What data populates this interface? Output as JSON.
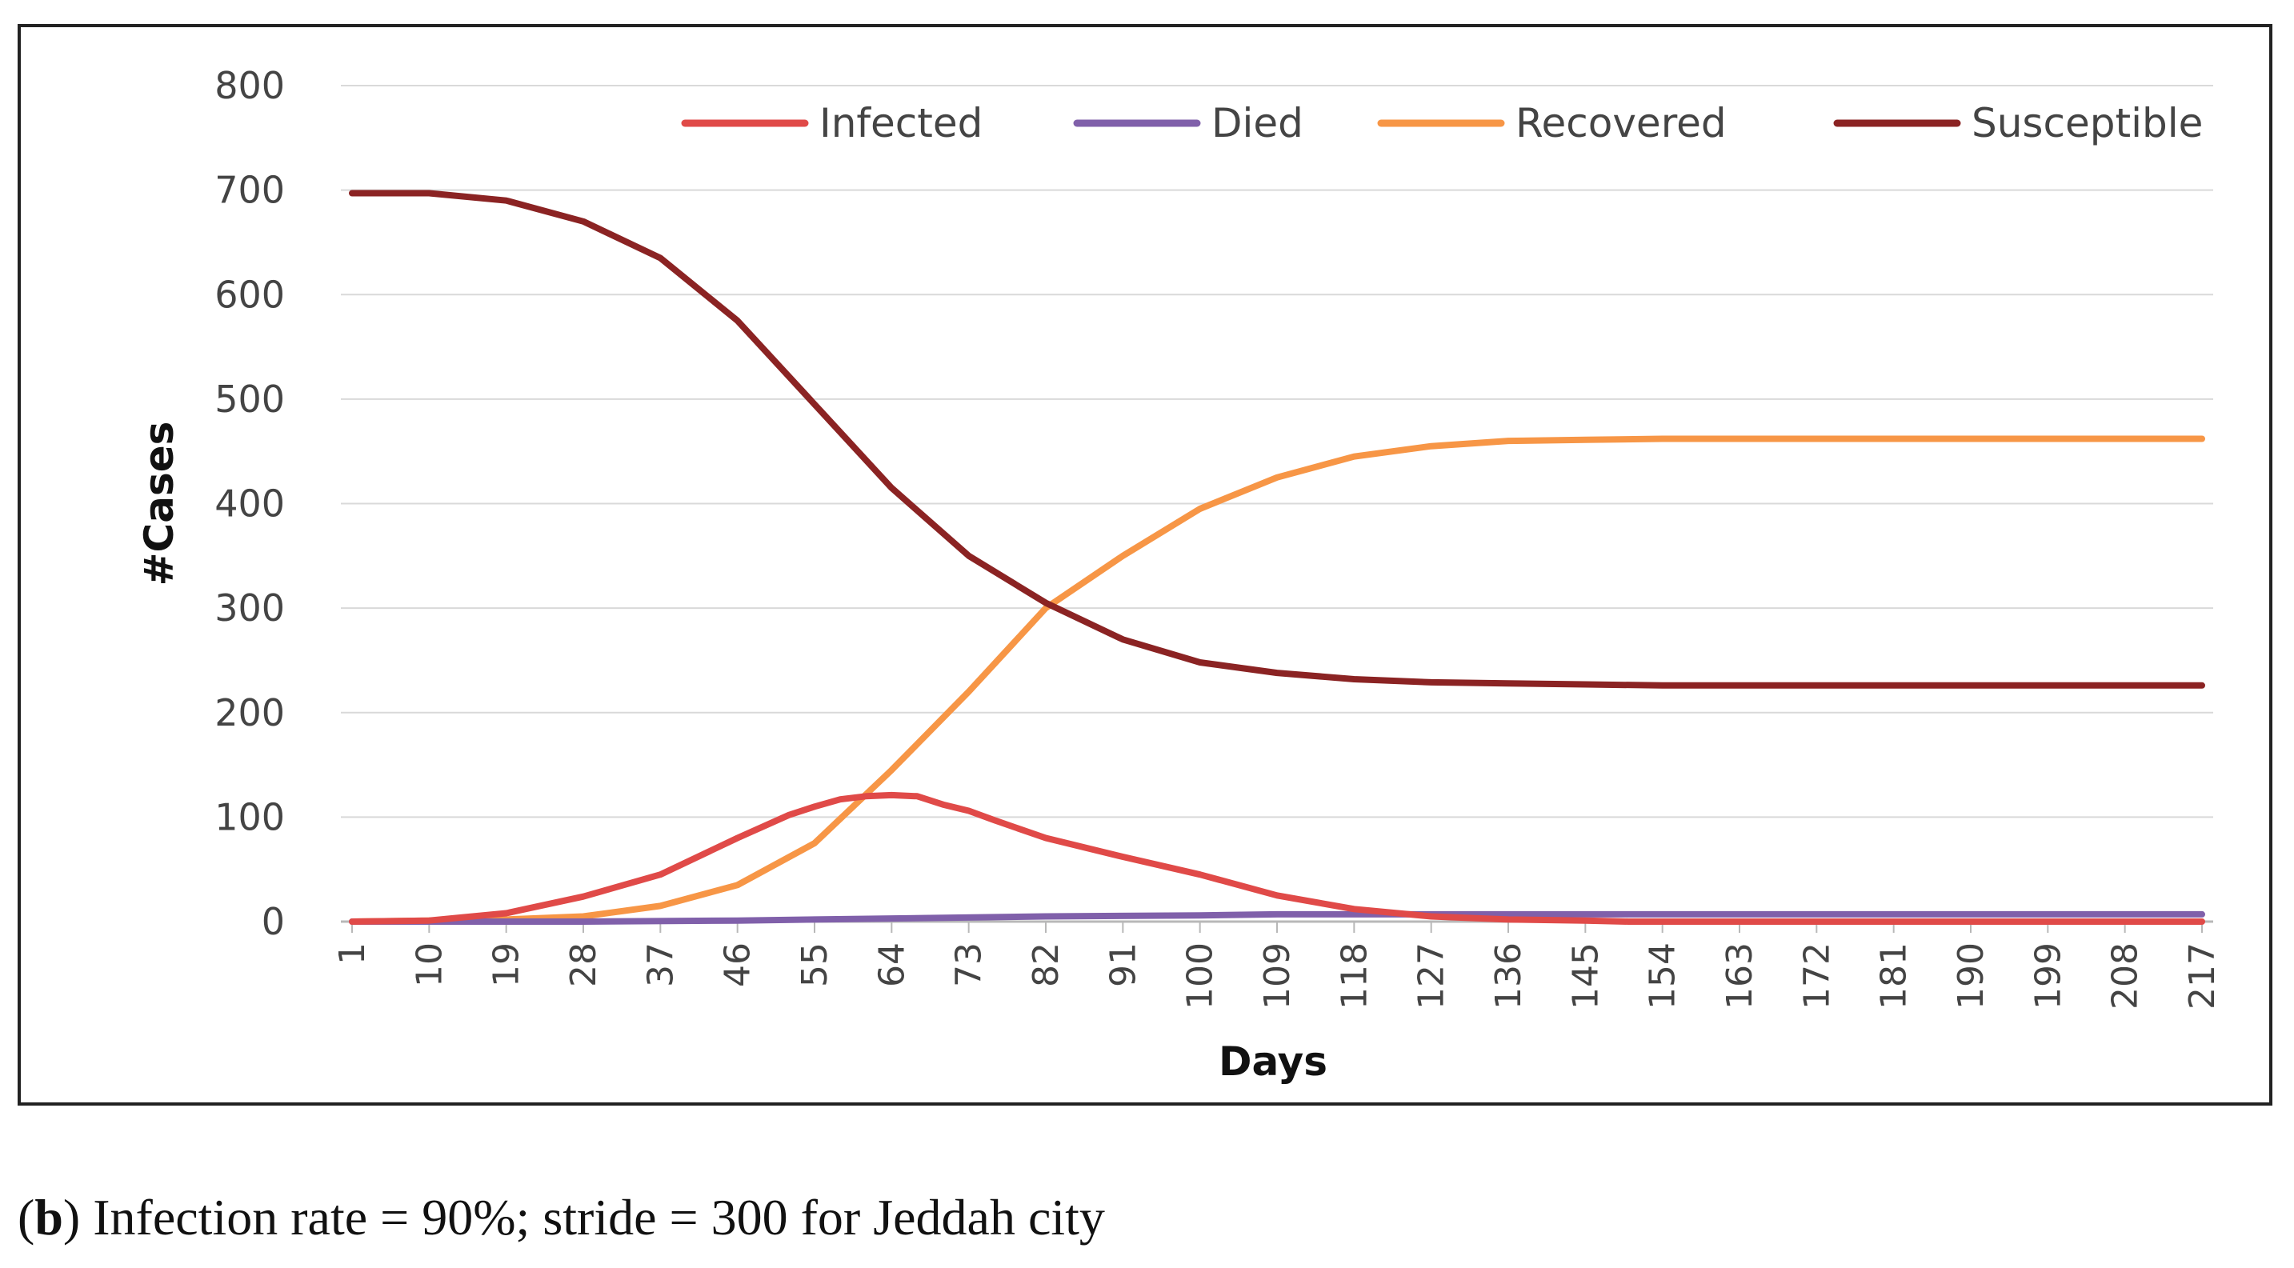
{
  "chart_data": {
    "type": "line",
    "title": "",
    "xlabel": "Days",
    "ylabel": "#Cases",
    "ylim": [
      0,
      800
    ],
    "y_ticks": [
      0,
      100,
      200,
      300,
      400,
      500,
      600,
      700,
      800
    ],
    "x_range": [
      1,
      217
    ],
    "x_ticks": [
      1,
      10,
      19,
      28,
      37,
      46,
      55,
      64,
      73,
      82,
      91,
      100,
      109,
      118,
      127,
      136,
      145,
      154,
      163,
      172,
      181,
      190,
      199,
      208,
      217
    ],
    "grid": "horizontal",
    "legend_position": "top-right",
    "series": [
      {
        "name": "Infected",
        "color": "#e04a48",
        "x": [
          1,
          10,
          19,
          28,
          37,
          46,
          52,
          55,
          58,
          61,
          64,
          67,
          70,
          73,
          76,
          82,
          91,
          100,
          109,
          118,
          127,
          136,
          145,
          150,
          217
        ],
        "values": [
          0,
          1,
          8,
          24,
          45,
          80,
          102,
          110,
          117,
          120,
          121,
          120,
          112,
          106,
          97,
          80,
          62,
          45,
          25,
          12,
          5,
          2,
          1,
          0,
          0
        ]
      },
      {
        "name": "Died",
        "color": "#8060aa",
        "x": [
          1,
          28,
          46,
          64,
          82,
          100,
          109,
          127,
          217
        ],
        "values": [
          0,
          0,
          1,
          3,
          5,
          6,
          7,
          7,
          7
        ]
      },
      {
        "name": "Recovered",
        "color": "#f79646",
        "x": [
          1,
          19,
          28,
          37,
          46,
          55,
          64,
          73,
          82,
          91,
          100,
          109,
          118,
          127,
          136,
          145,
          154,
          217
        ],
        "values": [
          0,
          2,
          5,
          15,
          35,
          75,
          145,
          220,
          300,
          350,
          395,
          425,
          445,
          455,
          460,
          461,
          462,
          462
        ]
      },
      {
        "name": "Susceptible",
        "color": "#8b2323",
        "x": [
          1,
          10,
          19,
          28,
          37,
          46,
          55,
          64,
          73,
          82,
          91,
          100,
          109,
          118,
          127,
          136,
          145,
          154,
          217
        ],
        "values": [
          697,
          697,
          690,
          670,
          635,
          575,
          495,
          415,
          350,
          305,
          270,
          248,
          238,
          232,
          229,
          228,
          227,
          226,
          226
        ]
      }
    ]
  },
  "caption": {
    "label": "b",
    "text": "Infection rate = 90%; stride = 300 for Jeddah city"
  }
}
